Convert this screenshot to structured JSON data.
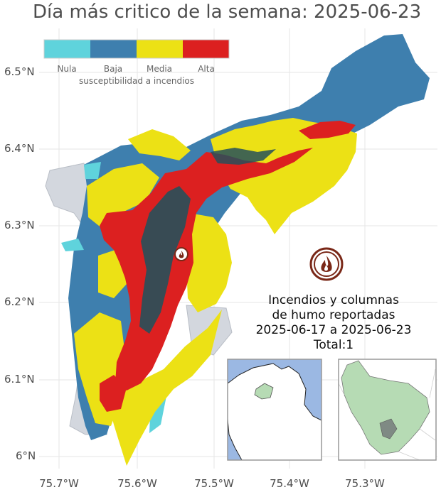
{
  "title": "Día más critico de la semana: 2025-06-23",
  "lat_labels": [
    "6.5°N",
    "6.4°N",
    "6.3°N",
    "6.2°N",
    "6.1°N",
    "6°N"
  ],
  "lon_labels": [
    "75.7°W",
    "75.6°W",
    "75.5°W",
    "75.4°W",
    "75.3°W"
  ],
  "legend": {
    "title": "susceptibilidad a incendios",
    "categories": [
      {
        "label": "Nula",
        "color": "#5fd3dc"
      },
      {
        "label": "Baja",
        "color": "#3e7fae"
      },
      {
        "label": "Media",
        "color": "#ece115"
      },
      {
        "label": "Alta",
        "color": "#dc2020"
      }
    ]
  },
  "fire_icon": "fire-icon",
  "info": {
    "line1": "Incendios y columnas",
    "line2": "de humo reportadas",
    "line3": "2025-06-17 a 2025-06-23",
    "line4": "Total:1"
  },
  "colors": {
    "outside_region": "#d3d7de",
    "dense_area": "#26505a",
    "fire_marker": "#7a2818",
    "grid": "#e6e6e6",
    "sea": "#9bb8e3",
    "inset_region": "#b6dbb4"
  }
}
